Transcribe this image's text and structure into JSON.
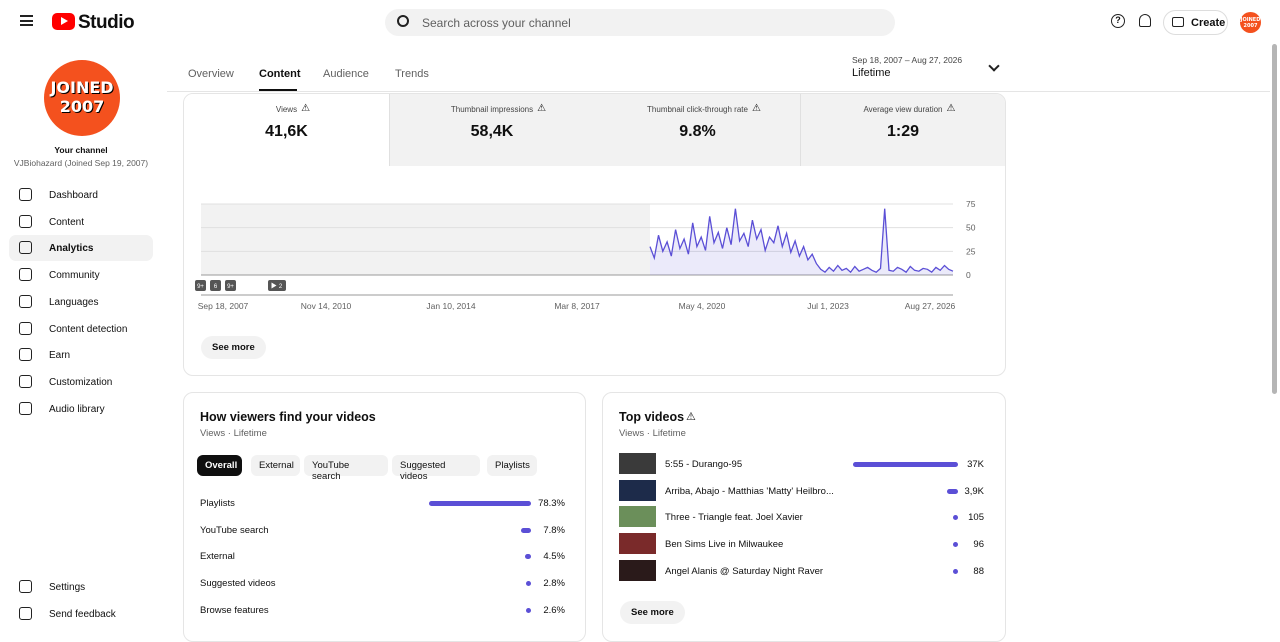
{
  "header": {
    "logo": "Studio",
    "search_placeholder": "Search across your channel",
    "create": "Create"
  },
  "sidebar": {
    "avatar_line1": "JOINED",
    "avatar_line2": "2007",
    "channel_label": "Your channel",
    "channel_name": "VJBiohazard (Joined Sep 19, 2007)",
    "nav": [
      "Dashboard",
      "Content",
      "Analytics",
      "Community",
      "Languages",
      "Content detection",
      "Earn",
      "Customization",
      "Audio library"
    ],
    "footer_nav": [
      "Settings",
      "Send feedback"
    ]
  },
  "tabs": [
    "Overview",
    "Content",
    "Audience",
    "Trends"
  ],
  "date_range": {
    "dates": "Sep 18, 2007 – Aug 27, 2026",
    "label": "Lifetime"
  },
  "metrics": [
    {
      "label": "Views",
      "value": "41,6K"
    },
    {
      "label": "Thumbnail impressions",
      "value": "58,4K"
    },
    {
      "label": "Thumbnail click-through rate",
      "value": "9.8%"
    },
    {
      "label": "Average view duration",
      "value": "1:29"
    }
  ],
  "chart_data": {
    "type": "line",
    "color": "#5b4fd6",
    "x_labels": [
      "Sep 18, 2007",
      "Nov 14, 2010",
      "Jan 10, 2014",
      "Mar 8, 2017",
      "May 4, 2020",
      "Jul 1, 2023",
      "Aug 27, 2026"
    ],
    "markers": [
      "9+",
      "6",
      "9+",
      "2"
    ],
    "ylim": [
      0,
      75
    ],
    "yticks": [
      0,
      25,
      50,
      75
    ],
    "grid": true,
    "values": [
      30,
      18,
      42,
      25,
      35,
      20,
      48,
      28,
      38,
      22,
      55,
      30,
      40,
      26,
      62,
      34,
      45,
      28,
      50,
      32,
      70,
      36,
      44,
      30,
      58,
      38,
      48,
      26,
      40,
      34,
      52,
      30,
      44,
      24,
      36,
      20,
      30,
      16,
      22,
      12,
      6,
      3,
      8,
      4,
      10,
      5,
      7,
      3,
      9,
      4,
      6,
      8,
      5,
      3,
      7,
      70,
      5,
      4,
      8,
      6,
      3,
      9,
      5,
      4,
      7,
      6,
      3,
      8,
      5,
      10,
      6,
      4
    ]
  },
  "see_more": "See more",
  "traffic": {
    "title": "How viewers find your videos",
    "subtitle": "Views · Lifetime",
    "filters": [
      "Overall",
      "External",
      "YouTube search",
      "Suggested videos",
      "Playlists"
    ],
    "chart_data": {
      "type": "bar",
      "color": "#5b4fd6",
      "categories": [
        "Playlists",
        "YouTube search",
        "External",
        "Suggested videos",
        "Browse features"
      ],
      "values": [
        78.3,
        7.8,
        4.5,
        2.8,
        2.6
      ],
      "value_labels": [
        "78.3%",
        "7.8%",
        "4.5%",
        "2.8%",
        "2.6%"
      ]
    }
  },
  "top_videos": {
    "title": "Top videos",
    "subtitle": "Views · Lifetime",
    "see_more": "See more",
    "chart_data": {
      "type": "bar",
      "color": "#5b4fd6",
      "categories": [
        "5:55 - Durango-95",
        "Arriba, Abajo - Matthias 'Matty' Heilbro...",
        "Three - Triangle feat. Joel Xavier",
        "Ben Sims Live in Milwaukee",
        "Angel Alanis @ Saturday Night Raver"
      ],
      "values": [
        37000,
        3900,
        105,
        96,
        88
      ],
      "value_labels": [
        "37K",
        "3,9K",
        "105",
        "96",
        "88"
      ]
    }
  }
}
